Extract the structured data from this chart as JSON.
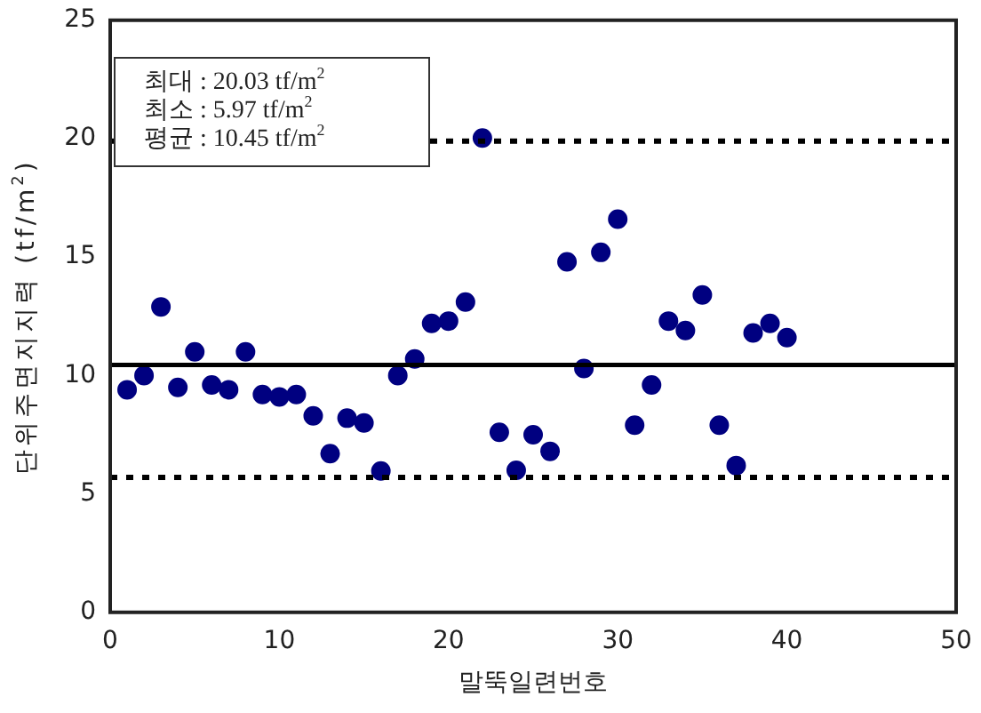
{
  "chart_data": {
    "type": "scatter",
    "xlabel": "말뚝일련번호",
    "ylabel": "단위주면지지력 (tf/m$^{2}$)",
    "x": [
      1,
      2,
      3,
      4,
      5,
      6,
      7,
      8,
      9,
      10,
      11,
      12,
      13,
      14,
      15,
      16,
      17,
      18,
      19,
      20,
      21,
      22,
      23,
      24,
      25,
      26,
      27,
      28,
      29,
      30,
      31,
      32,
      33,
      34,
      35,
      36,
      37,
      38,
      39,
      40
    ],
    "series": [
      {
        "color": "#000080",
        "values": [
          9.4,
          10.0,
          12.9,
          9.5,
          11.0,
          9.6,
          9.4,
          11.0,
          9.2,
          9.1,
          9.2,
          8.3,
          6.7,
          8.2,
          8.0,
          5.97,
          10.0,
          10.7,
          12.2,
          12.3,
          13.1,
          20.03,
          7.6,
          6.0,
          7.5,
          6.8,
          14.8,
          10.3,
          15.2,
          16.6,
          7.9,
          9.6,
          12.3,
          11.9,
          13.4,
          7.9,
          6.2,
          11.8,
          12.2,
          11.6
        ]
      }
    ],
    "marker": "circle",
    "xlim": [
      0,
      50
    ],
    "xticks": [
      0,
      10,
      20,
      30,
      40,
      50
    ],
    "ylim": [
      0,
      25
    ],
    "yticks": [
      0,
      5,
      10,
      15,
      20,
      25
    ],
    "grid": false,
    "legend": false,
    "ref_lines": [
      {
        "axis": "y",
        "value": 10.45,
        "line_style": "solid",
        "color": "#000000"
      },
      {
        "axis": "y",
        "value": 19.9,
        "line_style": "dotted",
        "color": "#000000"
      },
      {
        "axis": "y",
        "value": 5.7,
        "line_style": "dotted",
        "color": "#000000"
      }
    ],
    "annotations": [
      "최대 : 20.03 tf/m$^{2}$",
      "최소 : 5.97 tf/m$^{2}$",
      "평균 : 10.45 tf/m$^{2}$"
    ]
  }
}
